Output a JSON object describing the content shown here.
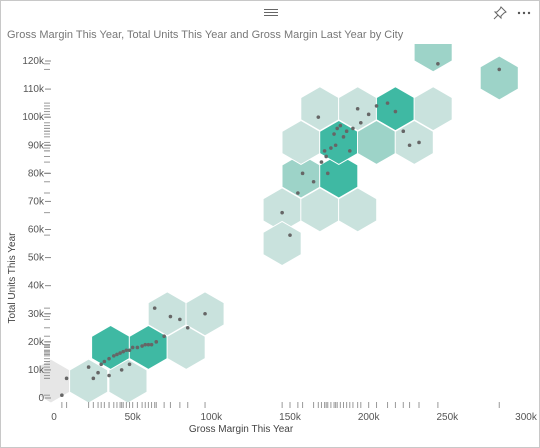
{
  "icons": {
    "pin": "pin-icon",
    "more": "more-options-icon",
    "grip": "drag-handle-icon"
  },
  "colors": {
    "hex_light": "#c9e2dd",
    "hex_mid": "#9dd3c8",
    "hex_dark": "#3fb9a3",
    "hex_grey": "#e6e6e6",
    "point": "#666666"
  },
  "chart_data": {
    "type": "scatter",
    "title": "Gross Margin This Year, Total Units This Year and Gross Margin Last Year by City",
    "xlabel": "Gross Margin This Year",
    "ylabel": "Total Units This Year",
    "xlim": [
      0,
      300000
    ],
    "ylim": [
      0,
      120000
    ],
    "xticks": [
      {
        "v": 0,
        "label": "0"
      },
      {
        "v": 50000,
        "label": "50k"
      },
      {
        "v": 100000,
        "label": "100k"
      },
      {
        "v": 150000,
        "label": "150k"
      },
      {
        "v": 200000,
        "label": "200k"
      },
      {
        "v": 250000,
        "label": "250k"
      },
      {
        "v": 300000,
        "label": "300k"
      }
    ],
    "yticks": [
      {
        "v": 0,
        "label": "0"
      },
      {
        "v": 10000,
        "label": "10k"
      },
      {
        "v": 20000,
        "label": "20k"
      },
      {
        "v": 30000,
        "label": "30k"
      },
      {
        "v": 40000,
        "label": "40k"
      },
      {
        "v": 50000,
        "label": "50k"
      },
      {
        "v": 60000,
        "label": "60k"
      },
      {
        "v": 70000,
        "label": "70k"
      },
      {
        "v": 80000,
        "label": "80k"
      },
      {
        "v": 90000,
        "label": "90k"
      },
      {
        "v": 100000,
        "label": "100k"
      },
      {
        "v": 110000,
        "label": "110k"
      },
      {
        "v": 120000,
        "label": "120k"
      }
    ],
    "hexbins": [
      {
        "x": -2000,
        "y": 6000,
        "d": 0
      },
      {
        "x": 22000,
        "y": 6000,
        "d": 1
      },
      {
        "x": 47000,
        "y": 6000,
        "d": 1
      },
      {
        "x": 36000,
        "y": 18000,
        "d": 3
      },
      {
        "x": 60000,
        "y": 18000,
        "d": 3
      },
      {
        "x": 84000,
        "y": 18000,
        "d": 1
      },
      {
        "x": 72000,
        "y": 30000,
        "d": 1
      },
      {
        "x": 96000,
        "y": 30000,
        "d": 1
      },
      {
        "x": 145000,
        "y": 67000,
        "d": 1
      },
      {
        "x": 169000,
        "y": 67000,
        "d": 1
      },
      {
        "x": 193000,
        "y": 67000,
        "d": 1
      },
      {
        "x": 145000,
        "y": 55000,
        "d": 1
      },
      {
        "x": 157000,
        "y": 79000,
        "d": 2
      },
      {
        "x": 181000,
        "y": 79000,
        "d": 3
      },
      {
        "x": 157000,
        "y": 91000,
        "d": 1
      },
      {
        "x": 181000,
        "y": 91000,
        "d": 3
      },
      {
        "x": 205000,
        "y": 91000,
        "d": 2
      },
      {
        "x": 229000,
        "y": 91000,
        "d": 1
      },
      {
        "x": 169000,
        "y": 103000,
        "d": 1
      },
      {
        "x": 193000,
        "y": 103000,
        "d": 1
      },
      {
        "x": 217000,
        "y": 103000,
        "d": 3
      },
      {
        "x": 241000,
        "y": 103000,
        "d": 1
      },
      {
        "x": 241000,
        "y": 124000,
        "d": 2
      },
      {
        "x": 283000,
        "y": 114000,
        "d": 2
      }
    ],
    "points": [
      [
        5000,
        1000
      ],
      [
        8000,
        7000
      ],
      [
        22000,
        11000
      ],
      [
        25000,
        7000
      ],
      [
        28000,
        9000
      ],
      [
        30000,
        12000
      ],
      [
        32000,
        13000
      ],
      [
        35000,
        14000
      ],
      [
        38000,
        15000
      ],
      [
        40000,
        15500
      ],
      [
        42000,
        16000
      ],
      [
        44000,
        16500
      ],
      [
        46000,
        17000
      ],
      [
        48000,
        17000
      ],
      [
        50000,
        18000
      ],
      [
        53000,
        18000
      ],
      [
        56000,
        18500
      ],
      [
        58000,
        19000
      ],
      [
        60000,
        19000
      ],
      [
        62000,
        19000
      ],
      [
        65000,
        20000
      ],
      [
        48000,
        12000
      ],
      [
        43000,
        10000
      ],
      [
        70000,
        22000
      ],
      [
        74000,
        29000
      ],
      [
        64000,
        32000
      ],
      [
        85000,
        25000
      ],
      [
        96000,
        30000
      ],
      [
        80000,
        28000
      ],
      [
        35000,
        8000
      ],
      [
        145000,
        66000
      ],
      [
        150000,
        58000
      ],
      [
        155000,
        73000
      ],
      [
        158000,
        80000
      ],
      [
        165000,
        77000
      ],
      [
        170000,
        84000
      ],
      [
        172000,
        88000
      ],
      [
        173000,
        86000
      ],
      [
        176000,
        89000
      ],
      [
        178000,
        94000
      ],
      [
        180000,
        96000
      ],
      [
        182000,
        97000
      ],
      [
        184000,
        93000
      ],
      [
        186000,
        95000
      ],
      [
        188000,
        88000
      ],
      [
        190000,
        96000
      ],
      [
        195000,
        98000
      ],
      [
        200000,
        101000
      ],
      [
        205000,
        104000
      ],
      [
        212000,
        105000
      ],
      [
        217000,
        102000
      ],
      [
        222000,
        95000
      ],
      [
        226000,
        90000
      ],
      [
        232000,
        91000
      ],
      [
        168000,
        100000
      ],
      [
        174000,
        80000
      ],
      [
        179000,
        90000
      ],
      [
        193000,
        103000
      ],
      [
        244000,
        119000
      ],
      [
        283000,
        117000
      ]
    ]
  }
}
